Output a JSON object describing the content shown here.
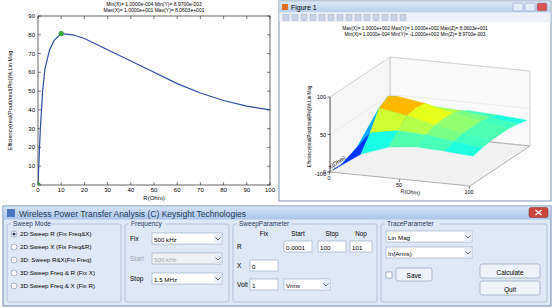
{
  "chart_data": [
    {
      "type": "line",
      "title_lines": [
        "Min(X)= 1.0000e-004 Min(Y)= 8.9700e-003",
        "Max(X)= 1.0000e+001 Max(Y)= 8.0603e+001"
      ],
      "x_label": "R(Ohm)",
      "y_label": "Efficiency(real(Pout)/real(Pin))%,Lin Mag",
      "x": [
        0,
        1,
        2,
        3,
        5,
        7,
        10,
        15,
        20,
        30,
        40,
        50,
        60,
        70,
        80,
        90,
        100
      ],
      "values": [
        0,
        30,
        50,
        62,
        72,
        77,
        80.6,
        80,
        78,
        72,
        66,
        60,
        54,
        49,
        45,
        42,
        40
      ],
      "color": "#2c4fa3",
      "marked_x": [
        0,
        10
      ],
      "marker": "circle",
      "xlim": [
        0,
        100
      ],
      "xticks": [
        0,
        10,
        20,
        30,
        40,
        50,
        60,
        70,
        80,
        90,
        100
      ],
      "ylim": [
        0,
        90
      ],
      "yticks": [
        0,
        10,
        20,
        30,
        40,
        50,
        60,
        70,
        80,
        90
      ],
      "grid": false
    },
    {
      "type": "surface",
      "window_title": "Figure 1",
      "title_lines": [
        "Max(X)= 1.0000e+002 Max(Y)= 1.0000e+002 Max(Z)= 8.0603e+001",
        "Min(X)= 1.0000e-004 Min(Y)= -1.0000e+002 Min(Z)= 8.9700e-003"
      ],
      "x_label": "R(Ohm)",
      "y_label": "X(Ohm)",
      "z_label": "Efficiency(real(Pout)/real(Pin))%,Lin Mag",
      "x": [
        0,
        20,
        40,
        60,
        80,
        100
      ],
      "y": [
        -90,
        -60,
        -30,
        0,
        30,
        60,
        90
      ],
      "cells": [
        [
          0,
          25,
          38,
          42,
          40,
          37
        ],
        [
          0,
          45,
          52,
          50,
          45,
          40
        ],
        [
          0,
          70,
          64,
          55,
          48,
          42
        ],
        [
          0,
          78,
          66,
          56,
          48,
          42
        ],
        [
          0,
          70,
          64,
          55,
          48,
          42
        ],
        [
          0,
          45,
          52,
          50,
          45,
          40
        ],
        [
          0,
          25,
          38,
          42,
          40,
          37
        ]
      ],
      "xlim": [
        0,
        100
      ],
      "xticks": [
        0,
        50,
        100
      ],
      "ylim": [
        -100,
        100
      ],
      "yticks": [
        -100,
        0,
        100
      ],
      "zlim": [
        0,
        100
      ],
      "zticks": [
        0,
        50,
        100
      ]
    }
  ],
  "dialog": {
    "title": "Wireless Power Transfer Analysis (C) Keysight Technologies",
    "sweep_mode": {
      "title": "Sweep Mode",
      "options": [
        "2D:Sweep R (Fix Freq&X)",
        "2D:Sweep X (Fix Freq&R)",
        "3D: Sweep R&X(Fix Freq)",
        "3D:Sweep Freq & R (Fix X)",
        "3D:Sweep Freq & X (Fix R)"
      ],
      "selected": 0
    },
    "frequency": {
      "title": "Frequency",
      "fields": [
        {
          "label": "Fix",
          "value": "500 kHz"
        },
        {
          "label": "Start",
          "value": "500 kHz",
          "enabled": false
        },
        {
          "label": "Stop",
          "value": "1.5 MHz"
        }
      ]
    },
    "sweep_parameter": {
      "title": "SweepParameter",
      "columns": [
        "Fix",
        "Start",
        "Stop",
        "Nop"
      ],
      "rows": [
        {
          "label": "R",
          "cells": [
            null,
            "0.0001",
            "100",
            "101"
          ]
        },
        {
          "label": "X",
          "cells": [
            "0",
            null,
            null,
            null
          ]
        },
        {
          "label": "Volt",
          "cells": [
            "1",
            null,
            null,
            null
          ],
          "unit": "Vrms"
        }
      ]
    },
    "trace_parameter": {
      "title": "TraceParameter",
      "format": "Lin Mag",
      "trace": "In(Arms)",
      "save": "Save",
      "buttons": [
        "Calculate",
        "Quit"
      ]
    }
  }
}
